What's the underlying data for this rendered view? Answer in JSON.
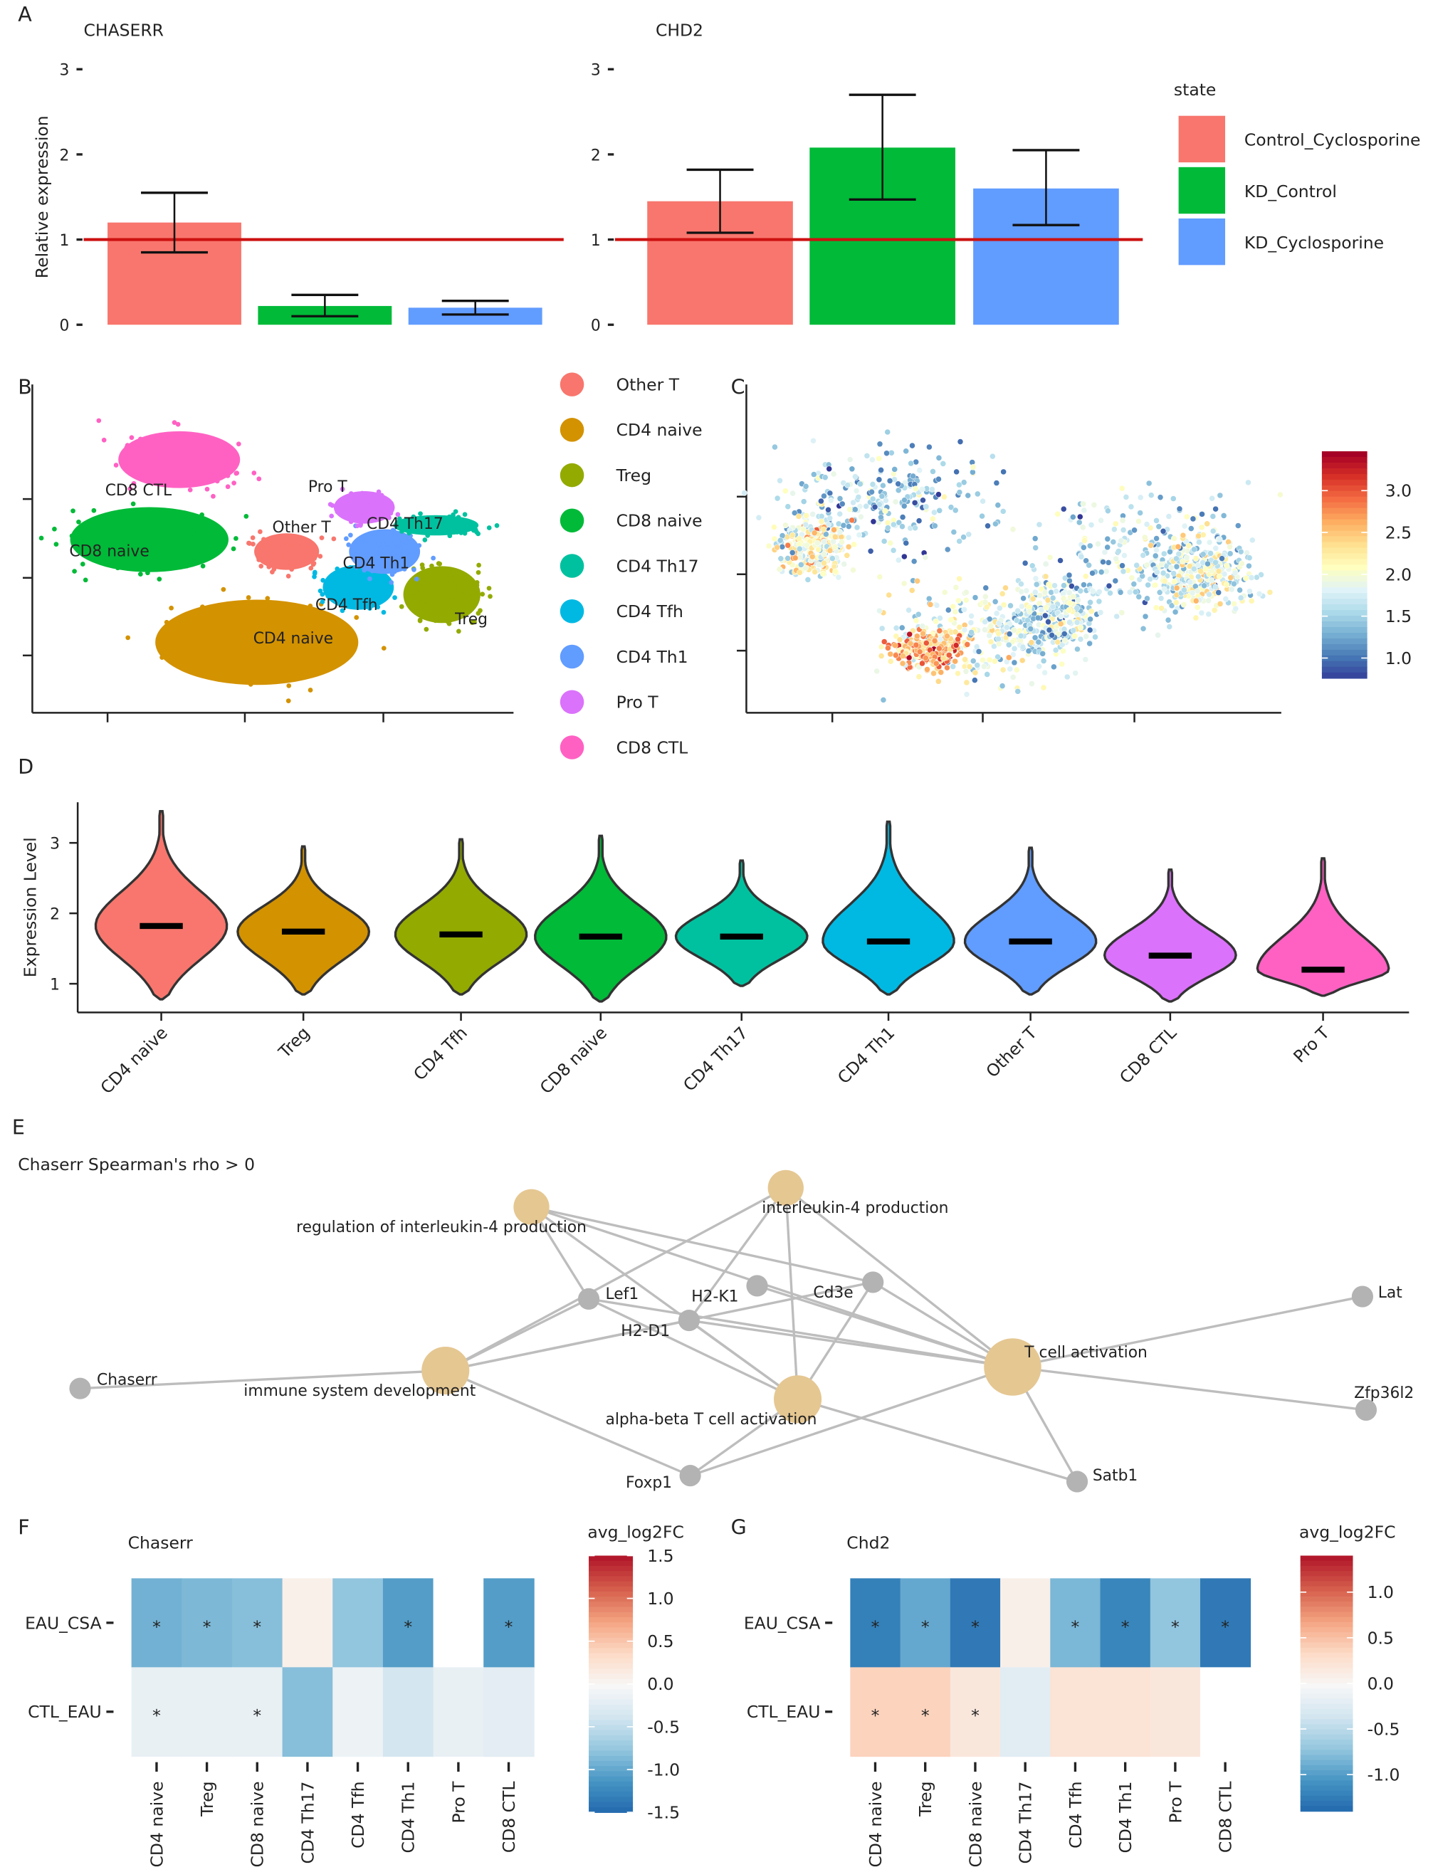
{
  "panel_labels": [
    "A",
    "B",
    "C",
    "D",
    "E",
    "F",
    "G"
  ],
  "chart_data": [
    {
      "id": "A1",
      "type": "bar",
      "title": "CHASERR",
      "ylabel": "Relative expression",
      "ylim": [
        0,
        3
      ],
      "yticks": [
        "0",
        "1",
        "2",
        "3"
      ],
      "reference_line": 1,
      "reference_color": "#CC0000",
      "categories": [
        "Control_Cyclosporine",
        "KD_Control",
        "KD_Cyclosporine"
      ],
      "values": [
        1.2,
        0.22,
        0.2
      ],
      "err_low": [
        0.85,
        0.1,
        0.12
      ],
      "err_high": [
        1.55,
        0.35,
        0.28
      ]
    },
    {
      "id": "A2",
      "type": "bar",
      "title": "CHD2",
      "ylim": [
        0,
        3
      ],
      "yticks": [
        "0",
        "1",
        "2",
        "3"
      ],
      "reference_line": 1,
      "categories": [
        "Control_Cyclosporine",
        "KD_Control",
        "KD_Cyclosporine"
      ],
      "values": [
        1.45,
        2.08,
        1.6
      ],
      "err_low": [
        1.08,
        1.47,
        1.17
      ],
      "err_high": [
        1.82,
        2.7,
        2.05
      ],
      "legend": {
        "title": "state",
        "placement": "right",
        "entries": [
          "Control_Cyclosporine",
          "KD_Control",
          "KD_Cyclosporine"
        ],
        "colors": [
          "#F8766D",
          "#00BA38",
          "#619CFF"
        ]
      }
    },
    {
      "id": "B",
      "type": "scatter",
      "subtype": "umap-clusters",
      "clusters": [
        "Other T",
        "CD4 naive",
        "Treg",
        "CD8 naive",
        "CD4 Th17",
        "CD4 Tfh",
        "CD4 Th1",
        "Pro T",
        "CD8 CTL"
      ],
      "colors": [
        "#F8766D",
        "#D39200",
        "#93AA00",
        "#00BA38",
        "#00C19F",
        "#00B9E3",
        "#619CFF",
        "#DB72FB",
        "#FF61C3"
      ],
      "legend_placement": "right"
    },
    {
      "id": "C",
      "type": "scatter",
      "subtype": "umap-feature",
      "colorbar": {
        "ticks": [
          "3.0",
          "2.5",
          "2.0",
          "1.5",
          "1.0"
        ],
        "tick_values": [
          3.0,
          2.5,
          2.0,
          1.5,
          1.0
        ],
        "range": [
          0.76,
          3.47
        ]
      }
    },
    {
      "id": "D",
      "type": "violin",
      "ylabel": "Expression Level",
      "yticks": [
        "1",
        "2",
        "3"
      ],
      "ylim": [
        0.6,
        3.6
      ],
      "categories": [
        "CD4 naive",
        "Treg",
        "CD4 Tfh",
        "CD8 naive",
        "CD4 Th17",
        "CD4 Th1",
        "Other T",
        "CD8 CTL",
        "Pro T"
      ],
      "medians": [
        1.82,
        1.74,
        1.7,
        1.67,
        1.67,
        1.6,
        1.6,
        1.4,
        1.2
      ],
      "max": [
        3.45,
        2.95,
        3.05,
        3.1,
        2.75,
        3.3,
        2.93,
        2.62,
        2.78
      ],
      "min": [
        0.78,
        0.85,
        0.85,
        0.75,
        0.97,
        0.85,
        0.85,
        0.75,
        0.83
      ],
      "colors": [
        "#F8766D",
        "#D39200",
        "#93AA00",
        "#00BA38",
        "#00C19F",
        "#00B9E3",
        "#619CFF",
        "#DB72FB",
        "#FF61C3"
      ]
    },
    {
      "id": "E",
      "type": "network",
      "title": "Chaserr Spearman's rho > 0",
      "nodes": [
        {
          "id": "reg",
          "label": "regulation of interleukin-4 production",
          "kind": "term"
        },
        {
          "id": "il4",
          "label": "interleukin-4 production",
          "kind": "term"
        },
        {
          "id": "lef1",
          "label": "Lef1",
          "kind": "gene"
        },
        {
          "id": "h2k1",
          "label": "H2-K1",
          "kind": "gene"
        },
        {
          "id": "cd3e",
          "label": "Cd3e",
          "kind": "gene"
        },
        {
          "id": "h2d1",
          "label": "H2-D1",
          "kind": "gene"
        },
        {
          "id": "imm",
          "label": "immune system development",
          "kind": "term"
        },
        {
          "id": "chaserr",
          "label": "Chaserr",
          "kind": "gene"
        },
        {
          "id": "ab",
          "label": "alpha-beta T cell activation",
          "kind": "term"
        },
        {
          "id": "tca",
          "label": "T cell activation",
          "kind": "term"
        },
        {
          "id": "lat",
          "label": "Lat",
          "kind": "gene"
        },
        {
          "id": "zfp",
          "label": "Zfp36l2",
          "kind": "gene"
        },
        {
          "id": "foxp1",
          "label": "Foxp1",
          "kind": "gene"
        },
        {
          "id": "satb1",
          "label": "Satb1",
          "kind": "gene"
        }
      ],
      "edges": [
        [
          "chaserr",
          "imm"
        ],
        [
          "imm",
          "lef1"
        ],
        [
          "imm",
          "h2d1"
        ],
        [
          "imm",
          "cd3e"
        ],
        [
          "imm",
          "foxp1"
        ],
        [
          "reg",
          "lef1"
        ],
        [
          "reg",
          "ab"
        ],
        [
          "reg",
          "cd3e"
        ],
        [
          "reg",
          "tca"
        ],
        [
          "il4",
          "imm"
        ],
        [
          "il4",
          "h2d1"
        ],
        [
          "il4",
          "ab"
        ],
        [
          "il4",
          "tca"
        ],
        [
          "lef1",
          "tca"
        ],
        [
          "h2d1",
          "tca"
        ],
        [
          "h2k1",
          "tca"
        ],
        [
          "cd3e",
          "ab"
        ],
        [
          "cd3e",
          "tca"
        ],
        [
          "h2d1",
          "ab"
        ],
        [
          "lef1",
          "ab"
        ],
        [
          "tca",
          "lat"
        ],
        [
          "tca",
          "zfp"
        ],
        [
          "tca",
          "satb1"
        ],
        [
          "tca",
          "foxp1"
        ],
        [
          "ab",
          "foxp1"
        ],
        [
          "ab",
          "satb1"
        ]
      ],
      "term_color": "#E5C792",
      "gene_color": "#B3B3B3",
      "edge_color": "#BDBDBD"
    },
    {
      "id": "F",
      "type": "heatmap",
      "title": "Chaserr",
      "colorbar_title": "avg_log2FC",
      "rows": [
        "EAU_CSA",
        "CTL_EAU"
      ],
      "columns": [
        "CD4 naive",
        "Treg",
        "CD8 naive",
        "CD4 Th17",
        "CD4 Tfh",
        "CD4 Th1",
        "Pro T",
        "CD8 CTL"
      ],
      "values": [
        [
          -0.9,
          -0.85,
          -0.8,
          0.1,
          -0.75,
          -1.05,
          null,
          -1.05
        ],
        [
          -0.15,
          -0.15,
          -0.15,
          -0.8,
          -0.1,
          -0.35,
          -0.15,
          -0.2
        ]
      ],
      "significant": [
        [
          true,
          true,
          true,
          false,
          false,
          true,
          false,
          true
        ],
        [
          true,
          false,
          true,
          false,
          false,
          false,
          false,
          false
        ]
      ],
      "star": "*",
      "colorbar_ticks": [
        "1.5",
        "1.0",
        "0.5",
        "0.0",
        "-0.5",
        "-1.0",
        "-1.5"
      ],
      "tick_values": [
        1.5,
        1.0,
        0.5,
        0,
        -0.5,
        -1.0,
        -1.5
      ],
      "range": [
        -1.5,
        1.5
      ]
    },
    {
      "id": "G",
      "type": "heatmap",
      "title": "Chd2",
      "colorbar_title": "avg_log2FC",
      "rows": [
        "EAU_CSA",
        "CTL_EAU"
      ],
      "columns": [
        "CD4 naive",
        "Treg",
        "CD8 naive",
        "CD4 Th17",
        "CD4 Tfh",
        "CD4 Th1",
        "Pro T",
        "CD8 CTL"
      ],
      "values": [
        [
          -1.2,
          -0.9,
          -1.25,
          0.1,
          -0.8,
          -1.15,
          -0.7,
          -1.25
        ],
        [
          0.4,
          0.4,
          0.2,
          -0.2,
          0.25,
          0.25,
          0.2,
          null
        ]
      ],
      "significant": [
        [
          true,
          true,
          true,
          false,
          true,
          true,
          true,
          true
        ],
        [
          true,
          true,
          true,
          false,
          false,
          false,
          false,
          false
        ]
      ],
      "star": "*",
      "colorbar_ticks": [
        "1.0",
        "0.5",
        "0.0",
        "-0.5",
        "-1.0"
      ],
      "tick_values": [
        1.0,
        0.5,
        0,
        -0.5,
        -1.0
      ],
      "range": [
        -1.4,
        1.4
      ]
    }
  ]
}
